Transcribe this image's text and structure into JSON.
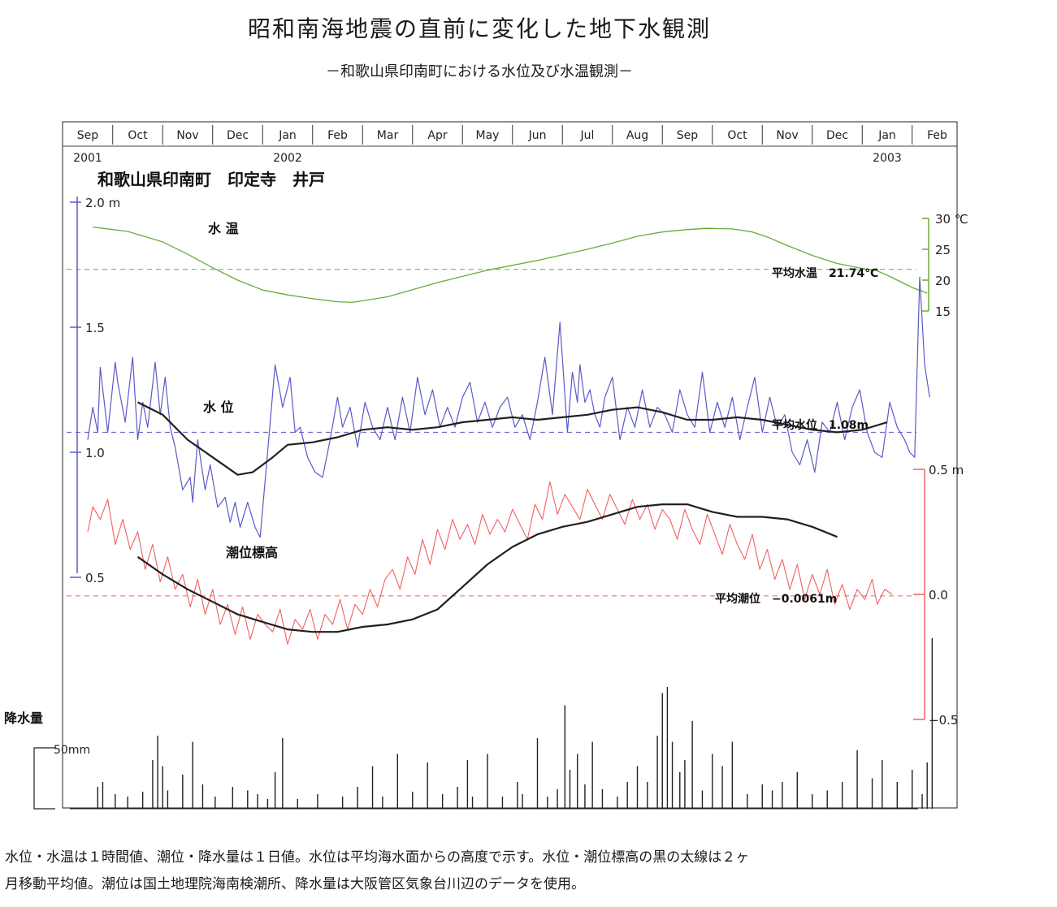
{
  "title": "昭和南海地震の直前に変化した地下水観測",
  "subtitle": "－和歌山県印南町における水位及び水温観測－",
  "footnote": [
    "水位・水温は１時間値、潮位・降水量は１日値。水位は平均海水面からの高度で示す。水位・潮位標高の黒の太線は２ヶ",
    "月移動平均値。潮位は国土地理院海南検潮所、降水量は大阪管区気象台川辺のデータを使用。"
  ],
  "colors": {
    "water_temp": "#6aaa3a",
    "water_level": "#5a5ac8",
    "tide": "#f06060",
    "moving_average": "#202020",
    "precip": "#202020"
  },
  "chart_data": {
    "type": "line",
    "site_label": "和歌山県印南町　印定寺　井戸",
    "months": [
      "Sep",
      "Oct",
      "Nov",
      "Dec",
      "Jan",
      "Feb",
      "Mar",
      "Apr",
      "May",
      "Jun",
      "Jul",
      "Aug",
      "Sep",
      "Oct",
      "Nov",
      "Dec",
      "Jan",
      "Feb"
    ],
    "years": [
      {
        "label": "2001",
        "month_index": 0
      },
      {
        "label": "2002",
        "month_index": 4
      },
      {
        "label": "2003",
        "month_index": 16
      }
    ],
    "axes": {
      "water_level": {
        "ticks": [
          "2.0 m",
          "1.5",
          "1.0",
          "0.5"
        ],
        "values": [
          2.0,
          1.5,
          1.0,
          0.5
        ],
        "range": [
          0.45,
          2.05
        ]
      },
      "water_temp": {
        "ticks": [
          "30 ℃",
          "25",
          "20",
          "15"
        ],
        "values": [
          30,
          25,
          20,
          15
        ],
        "range": [
          15,
          30
        ]
      },
      "tide": {
        "ticks": [
          "0.5 m",
          "0.0",
          "−0.5"
        ],
        "values": [
          0.5,
          0.0,
          -0.5
        ],
        "range": [
          -0.5,
          0.5
        ]
      },
      "precip": {
        "label": "降水量",
        "scale_label": "50mm",
        "scale_value": 50
      }
    },
    "series": [
      {
        "name": "水 温",
        "axis": "water_temp",
        "mean_label": "平均水温　21.74℃",
        "mean": 21.74,
        "x": [
          0.1,
          0.8,
          1.5,
          2.0,
          2.5,
          3.0,
          3.5,
          4.0,
          4.5,
          5.0,
          5.3,
          6.0,
          7.0,
          8.0,
          9.0,
          10.0,
          10.5,
          11.0,
          11.5,
          12.0,
          12.4,
          12.9,
          13.3,
          13.6,
          14.0,
          14.5,
          15.0,
          15.5,
          15.8,
          16.0,
          16.3,
          16.5,
          16.8
        ],
        "values": [
          28.6,
          27.9,
          26.2,
          24.2,
          22.0,
          20.0,
          18.4,
          17.6,
          17.0,
          16.5,
          16.4,
          17.3,
          19.6,
          21.6,
          23.2,
          25.0,
          26.0,
          27.1,
          27.8,
          28.2,
          28.4,
          28.3,
          27.8,
          27.0,
          25.6,
          24.0,
          22.7,
          21.9,
          21.5,
          20.8,
          19.6,
          18.8,
          17.9
        ]
      },
      {
        "name": "水 位",
        "axis": "water_level",
        "mean_label": "平均水位　1.08m",
        "mean": 1.08,
        "x": [
          0.0,
          0.1,
          0.2,
          0.25,
          0.4,
          0.55,
          0.6,
          0.75,
          0.9,
          1.0,
          1.1,
          1.2,
          1.35,
          1.45,
          1.55,
          1.65,
          1.75,
          1.9,
          2.05,
          2.1,
          2.2,
          2.35,
          2.45,
          2.6,
          2.75,
          2.85,
          2.95,
          3.05,
          3.2,
          3.35,
          3.45,
          3.6,
          3.75,
          3.9,
          4.05,
          4.15,
          4.25,
          4.4,
          4.55,
          4.7,
          4.85,
          5.0,
          5.1,
          5.25,
          5.4,
          5.55,
          5.7,
          5.85,
          6.0,
          6.15,
          6.3,
          6.45,
          6.6,
          6.75,
          6.9,
          7.05,
          7.2,
          7.35,
          7.5,
          7.65,
          7.8,
          7.95,
          8.1,
          8.25,
          8.4,
          8.55,
          8.7,
          8.85,
          9.0,
          9.15,
          9.3,
          9.45,
          9.6,
          9.7,
          9.8,
          9.85,
          9.95,
          10.05,
          10.15,
          10.25,
          10.35,
          10.5,
          10.65,
          10.8,
          10.95,
          11.1,
          11.25,
          11.4,
          11.55,
          11.7,
          11.85,
          12.0,
          12.15,
          12.3,
          12.45,
          12.6,
          12.75,
          12.9,
          13.05,
          13.2,
          13.35,
          13.5,
          13.65,
          13.8,
          13.95,
          14.1,
          14.25,
          14.4,
          14.55,
          14.7,
          14.85,
          15.0,
          15.15,
          15.3,
          15.45,
          15.6,
          15.75,
          15.9,
          16.05,
          16.2,
          16.35,
          16.45,
          16.55,
          16.65,
          16.75,
          16.85
        ],
        "values": [
          1.05,
          1.18,
          1.08,
          1.34,
          1.08,
          1.36,
          1.28,
          1.12,
          1.38,
          1.05,
          1.2,
          1.1,
          1.36,
          1.15,
          1.3,
          1.1,
          1.02,
          0.85,
          0.9,
          0.8,
          1.05,
          0.85,
          0.95,
          0.78,
          0.82,
          0.72,
          0.8,
          0.7,
          0.8,
          0.7,
          0.66,
          1.0,
          1.35,
          1.18,
          1.3,
          1.08,
          1.1,
          0.98,
          0.92,
          0.9,
          1.05,
          1.22,
          1.1,
          1.18,
          1.02,
          1.2,
          1.1,
          1.05,
          1.18,
          1.05,
          1.22,
          1.08,
          1.3,
          1.15,
          1.25,
          1.1,
          1.18,
          1.1,
          1.22,
          1.28,
          1.12,
          1.2,
          1.1,
          1.18,
          1.22,
          1.1,
          1.15,
          1.05,
          1.2,
          1.38,
          1.15,
          1.52,
          1.08,
          1.32,
          1.2,
          1.35,
          1.2,
          1.25,
          1.15,
          1.1,
          1.22,
          1.3,
          1.05,
          1.18,
          1.1,
          1.25,
          1.1,
          1.18,
          1.15,
          1.08,
          1.25,
          1.15,
          1.1,
          1.32,
          1.08,
          1.2,
          1.1,
          1.22,
          1.05,
          1.18,
          1.3,
          1.08,
          1.22,
          1.1,
          1.15,
          1.0,
          0.95,
          1.05,
          0.92,
          1.12,
          1.08,
          1.2,
          1.05,
          1.18,
          1.25,
          1.08,
          1.0,
          0.98,
          1.2,
          1.1,
          1.05,
          1.0,
          0.98,
          1.7,
          1.35,
          1.22
        ]
      },
      {
        "name": "水位 2ヶ月移動平均",
        "axis": "water_level",
        "x": [
          1.0,
          1.5,
          2.0,
          2.5,
          3.0,
          3.3,
          3.7,
          4.0,
          4.5,
          5.0,
          5.5,
          6.0,
          6.5,
          7.0,
          7.5,
          8.0,
          8.5,
          9.0,
          9.5,
          10.0,
          10.5,
          11.0,
          11.5,
          12.0,
          12.5,
          13.0,
          13.5,
          14.0,
          14.5,
          15.0,
          15.5,
          16.0
        ],
        "values": [
          1.2,
          1.15,
          1.05,
          0.98,
          0.91,
          0.92,
          0.98,
          1.03,
          1.04,
          1.06,
          1.09,
          1.1,
          1.09,
          1.1,
          1.12,
          1.13,
          1.14,
          1.13,
          1.14,
          1.15,
          1.17,
          1.18,
          1.16,
          1.13,
          1.13,
          1.14,
          1.13,
          1.11,
          1.09,
          1.08,
          1.09,
          1.12
        ]
      },
      {
        "name": "潮位標高",
        "axis": "tide",
        "mean_label": "平均潮位　−0.0061m",
        "mean": -0.0061,
        "x": [
          0.0,
          0.1,
          0.25,
          0.4,
          0.55,
          0.7,
          0.85,
          1.0,
          1.15,
          1.3,
          1.45,
          1.6,
          1.75,
          1.9,
          2.05,
          2.2,
          2.35,
          2.5,
          2.65,
          2.8,
          2.95,
          3.1,
          3.25,
          3.4,
          3.55,
          3.7,
          3.85,
          4.0,
          4.15,
          4.3,
          4.45,
          4.6,
          4.75,
          4.9,
          5.05,
          5.2,
          5.35,
          5.5,
          5.65,
          5.8,
          5.95,
          6.1,
          6.25,
          6.4,
          6.55,
          6.7,
          6.85,
          7.0,
          7.15,
          7.3,
          7.45,
          7.6,
          7.75,
          7.9,
          8.05,
          8.2,
          8.35,
          8.5,
          8.65,
          8.8,
          8.95,
          9.1,
          9.25,
          9.4,
          9.55,
          9.7,
          9.85,
          10.0,
          10.15,
          10.3,
          10.45,
          10.6,
          10.75,
          10.9,
          11.05,
          11.2,
          11.35,
          11.5,
          11.65,
          11.8,
          11.95,
          12.1,
          12.25,
          12.4,
          12.55,
          12.7,
          12.85,
          13.0,
          13.15,
          13.3,
          13.45,
          13.6,
          13.75,
          13.9,
          14.05,
          14.2,
          14.35,
          14.5,
          14.65,
          14.8,
          14.95,
          15.1,
          15.25,
          15.4,
          15.55,
          15.7,
          15.8,
          15.95,
          16.1
        ],
        "values": [
          0.25,
          0.35,
          0.3,
          0.38,
          0.2,
          0.3,
          0.18,
          0.25,
          0.1,
          0.2,
          0.05,
          0.15,
          0.02,
          0.08,
          -0.05,
          0.06,
          -0.08,
          0.02,
          -0.12,
          -0.04,
          -0.16,
          -0.05,
          -0.18,
          -0.08,
          -0.12,
          -0.15,
          -0.06,
          -0.2,
          -0.1,
          -0.14,
          -0.06,
          -0.18,
          -0.08,
          -0.12,
          -0.02,
          -0.14,
          -0.04,
          -0.08,
          0.02,
          -0.05,
          0.06,
          0.1,
          0.02,
          0.15,
          0.08,
          0.22,
          0.12,
          0.26,
          0.18,
          0.3,
          0.22,
          0.28,
          0.2,
          0.32,
          0.24,
          0.3,
          0.25,
          0.34,
          0.28,
          0.22,
          0.36,
          0.3,
          0.45,
          0.32,
          0.4,
          0.35,
          0.3,
          0.42,
          0.36,
          0.3,
          0.4,
          0.34,
          0.28,
          0.38,
          0.3,
          0.36,
          0.26,
          0.34,
          0.3,
          0.22,
          0.34,
          0.26,
          0.2,
          0.32,
          0.24,
          0.16,
          0.28,
          0.2,
          0.14,
          0.24,
          0.1,
          0.18,
          0.06,
          0.14,
          0.02,
          0.12,
          -0.02,
          0.08,
          0.0,
          0.1,
          -0.04,
          0.04,
          -0.06,
          0.02,
          -0.02,
          0.06,
          -0.04,
          0.02,
          0.0
        ]
      },
      {
        "name": "潮位 2ヶ月移動平均",
        "axis": "tide",
        "x": [
          1.0,
          1.5,
          2.0,
          2.5,
          3.0,
          3.5,
          4.0,
          4.5,
          5.0,
          5.5,
          6.0,
          6.5,
          7.0,
          7.5,
          8.0,
          8.5,
          9.0,
          9.5,
          10.0,
          10.5,
          11.0,
          11.5,
          12.0,
          12.5,
          13.0,
          13.5,
          14.0,
          14.5,
          15.0
        ],
        "values": [
          0.15,
          0.08,
          0.02,
          -0.03,
          -0.08,
          -0.11,
          -0.14,
          -0.15,
          -0.15,
          -0.13,
          -0.12,
          -0.1,
          -0.06,
          0.03,
          0.12,
          0.19,
          0.24,
          0.27,
          0.29,
          0.32,
          0.35,
          0.36,
          0.36,
          0.33,
          0.31,
          0.31,
          0.3,
          0.27,
          0.23
        ]
      }
    ],
    "precipitation": {
      "x": [
        0.2,
        0.3,
        0.55,
        0.8,
        1.1,
        1.3,
        1.4,
        1.5,
        1.6,
        1.9,
        2.1,
        2.3,
        2.55,
        2.9,
        3.2,
        3.4,
        3.6,
        3.75,
        3.9,
        4.2,
        4.6,
        5.1,
        5.4,
        5.7,
        5.9,
        6.2,
        6.5,
        6.8,
        7.1,
        7.4,
        7.6,
        7.7,
        8.0,
        8.3,
        8.6,
        8.7,
        9.0,
        9.2,
        9.4,
        9.55,
        9.65,
        9.8,
        9.95,
        10.1,
        10.3,
        10.6,
        10.8,
        11.0,
        11.2,
        11.4,
        11.5,
        11.6,
        11.7,
        11.85,
        11.95,
        12.1,
        12.3,
        12.5,
        12.7,
        12.9,
        13.2,
        13.5,
        13.7,
        13.9,
        14.2,
        14.5,
        14.8,
        15.1,
        15.4,
        15.7,
        15.9,
        16.2,
        16.5,
        16.7,
        16.8,
        16.9
      ],
      "values": [
        18,
        22,
        12,
        10,
        14,
        40,
        60,
        35,
        15,
        28,
        55,
        20,
        10,
        18,
        15,
        12,
        8,
        30,
        58,
        8,
        12,
        10,
        18,
        35,
        10,
        45,
        14,
        38,
        12,
        18,
        40,
        10,
        45,
        10,
        22,
        12,
        58,
        10,
        16,
        85,
        32,
        45,
        20,
        55,
        16,
        10,
        22,
        35,
        22,
        60,
        95,
        100,
        55,
        30,
        40,
        72,
        15,
        45,
        35,
        55,
        12,
        20,
        15,
        22,
        30,
        12,
        15,
        22,
        48,
        25,
        40,
        22,
        32,
        12,
        38,
        140
      ]
    }
  }
}
